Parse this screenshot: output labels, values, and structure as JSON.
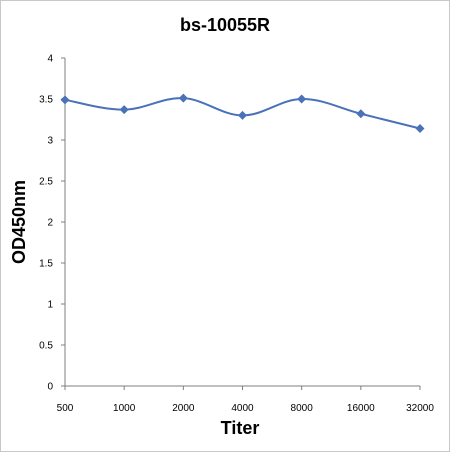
{
  "chart_data": {
    "type": "line",
    "title": "bs-10055R",
    "xlabel": "Titer",
    "ylabel": "OD450nm",
    "categories": [
      "500",
      "1000",
      "2000",
      "4000",
      "8000",
      "16000",
      "32000"
    ],
    "series": [
      {
        "values": [
          3.49,
          3.37,
          3.51,
          3.3,
          3.5,
          3.32,
          3.14
        ]
      }
    ],
    "ylim": [
      0,
      4
    ],
    "yticks": [
      "0",
      "0.5",
      "1",
      "1.5",
      "2",
      "2.5",
      "3",
      "3.5",
      "4"
    ],
    "grid": false,
    "legend": "none",
    "line_color": "#4a72b8",
    "marker": "diamond"
  }
}
